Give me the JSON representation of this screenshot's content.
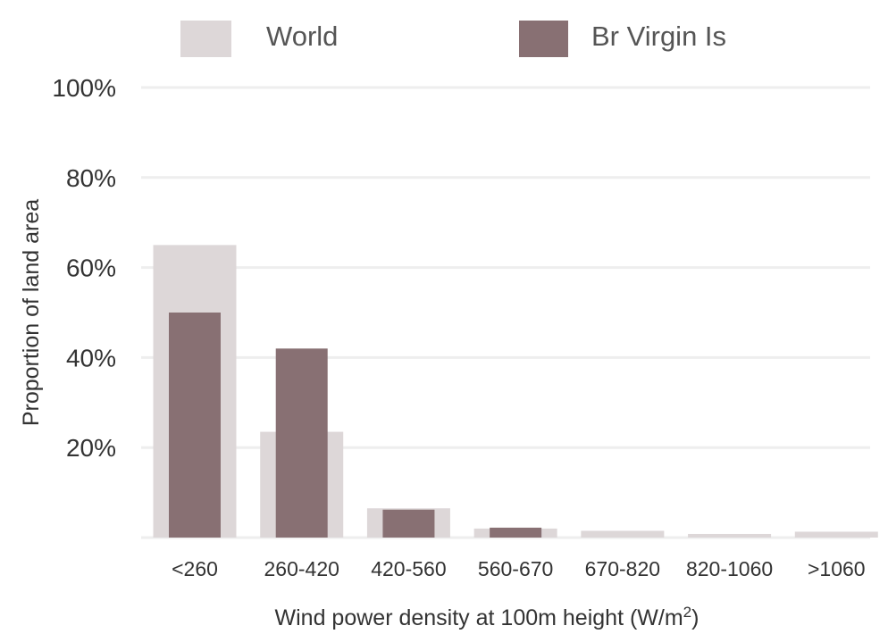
{
  "chart_data": {
    "type": "bar",
    "categories": [
      "<260",
      "260-420",
      "420-560",
      "560-670",
      "670-820",
      "820-1060",
      ">1060"
    ],
    "series": [
      {
        "name": "World",
        "values": [
          65,
          23.5,
          6.5,
          2,
          1.5,
          0.8,
          1.3
        ],
        "color": "#ddd7d8"
      },
      {
        "name": "Br Virgin Is",
        "values": [
          50,
          42,
          6.2,
          2.2,
          0,
          0,
          0
        ],
        "color": "#887073"
      }
    ],
    "ylim": [
      0,
      100
    ],
    "yticks": [
      {
        "value": 20,
        "label": "20%"
      },
      {
        "value": 40,
        "label": "40%"
      },
      {
        "value": 60,
        "label": "60%"
      },
      {
        "value": 80,
        "label": "80%"
      },
      {
        "value": 100,
        "label": "100%"
      }
    ],
    "ylabel": "Proportion of land area",
    "xlabel": "Wind power density at 100m height (W/m",
    "xlabel_sup": "2",
    "xlabel_close": ")",
    "grid": true,
    "legend_position": "top"
  }
}
